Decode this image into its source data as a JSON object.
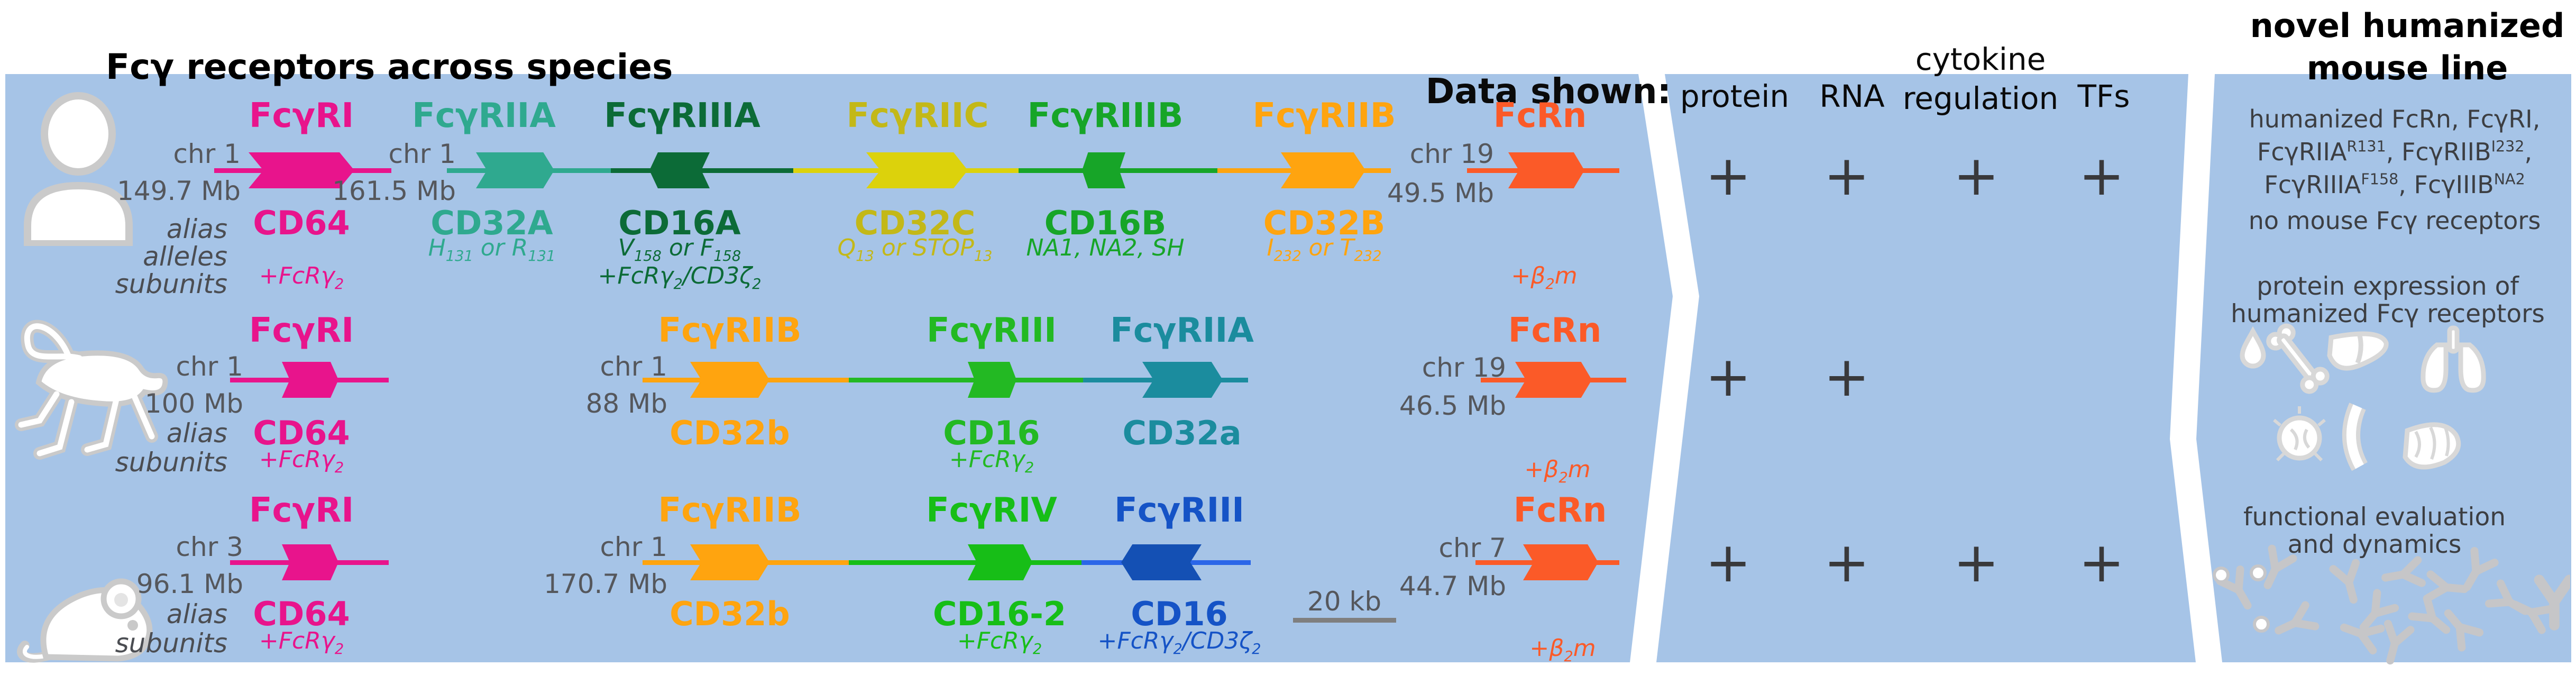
{
  "title": "Fcγ receptors across species",
  "header": {
    "label": "Data shown:",
    "protein": "protein",
    "rna": "RNA",
    "cytokine_1": "cytokine",
    "cytokine_2": "regulation",
    "tfs": "TFs"
  },
  "scale_bar": {
    "label": "20 kb"
  },
  "right": {
    "title_1": "novel humanized",
    "title_2": "mouse line",
    "feat_1": "humanized FcRn, FcγRI,",
    "feat_2": [
      [
        "t",
        "FcγRIIA"
      ],
      [
        "p",
        "R131"
      ],
      [
        "t",
        ", FcγRIIB"
      ],
      [
        "p",
        "I232"
      ],
      [
        "t",
        ","
      ]
    ],
    "feat_3": [
      [
        "t",
        "FcγRIIIA"
      ],
      [
        "p",
        "F158"
      ],
      [
        "t",
        ", FcγIIIB"
      ],
      [
        "p",
        "NA2"
      ]
    ],
    "feat_4": "no mouse Fcγ receptors",
    "expr_1": "protein expression of",
    "expr_2": "humanized Fcγ receptors",
    "func_1": "functional evaluation",
    "func_2": "and dynamics"
  },
  "species": [
    {
      "id": "human",
      "labels": {
        "alias": "alias",
        "alleles": "alleles",
        "subunits": "subunits"
      },
      "genes": {
        "fcgr1": {
          "name": "FcγRI",
          "cd": "CD64",
          "chr": "chr 1",
          "mb": "149.7 Mb",
          "sub": [
            [
              "t",
              "+FcRγ"
            ],
            [
              "s",
              "2"
            ]
          ]
        },
        "fcgr2a": {
          "name": "FcγRIIA",
          "cd": "CD32A",
          "chr": "chr 1",
          "mb": "161.5 Mb",
          "al": [
            [
              "t",
              "H"
            ],
            [
              "s",
              "131"
            ],
            [
              "t",
              " or R"
            ],
            [
              "s",
              "131"
            ]
          ]
        },
        "fcgr3a": {
          "name": "FcγRIIIA",
          "cd": "CD16A",
          "al": [
            [
              "t",
              "V"
            ],
            [
              "s",
              "158"
            ],
            [
              "t",
              " or F"
            ],
            [
              "s",
              "158"
            ]
          ],
          "sub": [
            [
              "t",
              "+FcRγ"
            ],
            [
              "s",
              "2"
            ],
            [
              "t",
              "/CD3ζ"
            ],
            [
              "s",
              "2"
            ]
          ]
        },
        "fcgr2c": {
          "name": "FcγRIIC",
          "cd": "CD32C",
          "al": [
            [
              "t",
              "Q"
            ],
            [
              "s",
              "13"
            ],
            [
              "t",
              " or STOP"
            ],
            [
              "s",
              "13"
            ]
          ]
        },
        "fcgr3b": {
          "name": "FcγRIIIB",
          "cd": "CD16B",
          "alleles": "NA1, NA2, SH"
        },
        "fcgr2b": {
          "name": "FcγRIIB",
          "cd": "CD32B",
          "al": [
            [
              "t",
              "I"
            ],
            [
              "s",
              "232"
            ],
            [
              "t",
              " or T"
            ],
            [
              "s",
              "232"
            ]
          ]
        },
        "fcrn": {
          "name": "FcRn",
          "chr": "chr 19",
          "mb": "49.5 Mb",
          "sub": [
            [
              "t",
              "+β"
            ],
            [
              "s",
              "2"
            ],
            [
              "t",
              "m"
            ]
          ]
        }
      },
      "marks": {
        "protein": "+",
        "rna": "+",
        "cytokine": "+",
        "tfs": "+"
      }
    },
    {
      "id": "monkey",
      "labels": {
        "alias": "alias",
        "subunits": "subunits"
      },
      "genes": {
        "fcgr1": {
          "name": "FcγRI",
          "cd": "CD64",
          "chr": "chr 1",
          "mb": "100 Mb",
          "sub": [
            [
              "t",
              "+FcRγ"
            ],
            [
              "s",
              "2"
            ]
          ]
        },
        "fcgr2b": {
          "name": "FcγRIIB",
          "cd": "CD32b",
          "chr": "chr 1",
          "mb": "88 Mb"
        },
        "fcgr3": {
          "name": "FcγRIII",
          "cd": "CD16",
          "sub": [
            [
              "t",
              "+FcRγ"
            ],
            [
              "s",
              "2"
            ]
          ]
        },
        "fcgr2a": {
          "name": "FcγRIIA",
          "cd": "CD32a"
        },
        "fcrn": {
          "name": "FcRn",
          "chr": "chr 19",
          "mb": "46.5 Mb",
          "sub": [
            [
              "t",
              "+β"
            ],
            [
              "s",
              "2"
            ],
            [
              "t",
              "m"
            ]
          ]
        }
      },
      "marks": {
        "protein": "+",
        "rna": "+",
        "cytokine": "",
        "tfs": ""
      }
    },
    {
      "id": "mouse",
      "labels": {
        "alias": "alias",
        "subunits": "subunits"
      },
      "genes": {
        "fcgr1": {
          "name": "FcγRI",
          "cd": "CD64",
          "chr": "chr 3",
          "mb": "96.1 Mb",
          "sub": [
            [
              "t",
              "+FcRγ"
            ],
            [
              "s",
              "2"
            ]
          ]
        },
        "fcgr2b": {
          "name": "FcγRIIB",
          "cd": "CD32b",
          "chr": "chr 1",
          "mb": "170.7 Mb"
        },
        "fcgr4": {
          "name": "FcγRIV",
          "cd": "CD16-2",
          "sub": [
            [
              "t",
              "+FcRγ"
            ],
            [
              "s",
              "2"
            ]
          ]
        },
        "fcgr3": {
          "name": "FcγRIII",
          "cd": "CD16",
          "sub": [
            [
              "t",
              "+FcRγ"
            ],
            [
              "s",
              "2"
            ],
            [
              "t",
              "/CD3ζ"
            ],
            [
              "s",
              "2"
            ]
          ]
        },
        "fcrn": {
          "name": "FcRn",
          "chr": "chr 7",
          "mb": "44.7 Mb",
          "sub": [
            [
              "t",
              "+β"
            ],
            [
              "s",
              "2"
            ],
            [
              "t",
              "m"
            ]
          ]
        }
      },
      "marks": {
        "protein": "+",
        "rna": "+",
        "cytokine": "+",
        "tfs": "+"
      }
    }
  ],
  "colors": {
    "background_panel": "#a6c4e7",
    "fcgr1_magenta": "#e8148c",
    "human_fcgr2a_teal": "#2fa98f",
    "human_fcgr3a_darkgreen": "#0c6b37",
    "human_fcgr2c_yellow": "#dcd20c",
    "human_fcgr3b_green": "#17a528",
    "fcgr2b_orange": "#ffa40f",
    "fcrn_orangered": "#fb5a28",
    "monkey_fcgr3_green": "#23b923",
    "monkey_fcgr2a_teal": "#1b8c9e",
    "mouse_fcgr4_green": "#17be17",
    "mouse_fcgr3_blue": "#1450b4",
    "gray_text": "#55575c"
  }
}
